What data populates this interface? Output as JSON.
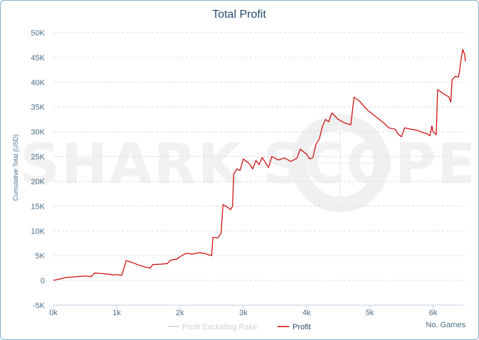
{
  "chart_data": {
    "type": "line",
    "title": "Total Profit",
    "xlabel": "No. Games",
    "ylabel": "Cumulative Total (USD)",
    "xlim": [
      0,
      6500
    ],
    "ylim": [
      -5000,
      50000
    ],
    "x_ticks": [
      "0k",
      "1k",
      "2k",
      "3k",
      "4k",
      "5k",
      "6k"
    ],
    "x_tick_values": [
      0,
      1000,
      2000,
      3000,
      4000,
      5000,
      6000
    ],
    "y_ticks": [
      "-5K",
      "0",
      "5K",
      "10K",
      "15K",
      "20K",
      "25K",
      "30K",
      "35K",
      "40K",
      "45K",
      "50K"
    ],
    "y_tick_values": [
      -5000,
      0,
      5000,
      10000,
      15000,
      20000,
      25000,
      30000,
      35000,
      40000,
      45000,
      50000
    ],
    "grid": true,
    "legend_position": "bottom-center",
    "watermark": "SHARK SCOPE",
    "series": [
      {
        "name": "Profit Excluding Rake",
        "color": "#d0d0d0",
        "visible": false,
        "points": []
      },
      {
        "name": "Profit",
        "color": "#cc0000",
        "visible": true,
        "points": [
          [
            0,
            0
          ],
          [
            100,
            300
          ],
          [
            200,
            600
          ],
          [
            300,
            700
          ],
          [
            400,
            800
          ],
          [
            500,
            900
          ],
          [
            600,
            800
          ],
          [
            650,
            1500
          ],
          [
            750,
            1400
          ],
          [
            850,
            1300
          ],
          [
            950,
            1100
          ],
          [
            1000,
            1200
          ],
          [
            1080,
            1000
          ],
          [
            1150,
            4000
          ],
          [
            1250,
            3600
          ],
          [
            1350,
            3100
          ],
          [
            1450,
            2700
          ],
          [
            1530,
            2500
          ],
          [
            1570,
            3200
          ],
          [
            1700,
            3300
          ],
          [
            1800,
            3400
          ],
          [
            1850,
            4100
          ],
          [
            1950,
            4300
          ],
          [
            2000,
            4800
          ],
          [
            2100,
            5500
          ],
          [
            2200,
            5300
          ],
          [
            2300,
            5600
          ],
          [
            2400,
            5400
          ],
          [
            2500,
            5000
          ],
          [
            2520,
            8700
          ],
          [
            2600,
            8600
          ],
          [
            2650,
            9500
          ],
          [
            2680,
            15300
          ],
          [
            2750,
            14800
          ],
          [
            2800,
            14300
          ],
          [
            2830,
            15000
          ],
          [
            2850,
            21500
          ],
          [
            2900,
            22500
          ],
          [
            2950,
            22200
          ],
          [
            3000,
            24500
          ],
          [
            3100,
            23500
          ],
          [
            3150,
            22500
          ],
          [
            3200,
            24200
          ],
          [
            3250,
            23400
          ],
          [
            3300,
            24800
          ],
          [
            3400,
            22800
          ],
          [
            3450,
            25000
          ],
          [
            3550,
            24300
          ],
          [
            3650,
            24700
          ],
          [
            3750,
            24000
          ],
          [
            3850,
            24700
          ],
          [
            3900,
            26500
          ],
          [
            4000,
            25500
          ],
          [
            4050,
            24500
          ],
          [
            4100,
            24800
          ],
          [
            4150,
            27500
          ],
          [
            4200,
            28500
          ],
          [
            4250,
            31000
          ],
          [
            4300,
            32500
          ],
          [
            4350,
            32000
          ],
          [
            4400,
            33800
          ],
          [
            4500,
            32500
          ],
          [
            4600,
            31800
          ],
          [
            4700,
            31400
          ],
          [
            4750,
            37000
          ],
          [
            4850,
            36000
          ],
          [
            4950,
            34500
          ],
          [
            5100,
            33000
          ],
          [
            5200,
            32000
          ],
          [
            5300,
            30800
          ],
          [
            5400,
            30500
          ],
          [
            5450,
            29500
          ],
          [
            5500,
            29000
          ],
          [
            5550,
            30800
          ],
          [
            5650,
            30500
          ],
          [
            5750,
            30300
          ],
          [
            5800,
            30000
          ],
          [
            5900,
            29600
          ],
          [
            5950,
            29200
          ],
          [
            5980,
            31200
          ],
          [
            6000,
            30000
          ],
          [
            6050,
            29400
          ],
          [
            6070,
            38500
          ],
          [
            6150,
            37800
          ],
          [
            6250,
            37000
          ],
          [
            6280,
            36000
          ],
          [
            6300,
            40500
          ],
          [
            6350,
            41200
          ],
          [
            6400,
            41000
          ],
          [
            6420,
            42500
          ],
          [
            6440,
            44500
          ],
          [
            6470,
            46600
          ],
          [
            6500,
            45500
          ],
          [
            6510,
            44200
          ]
        ]
      }
    ]
  }
}
